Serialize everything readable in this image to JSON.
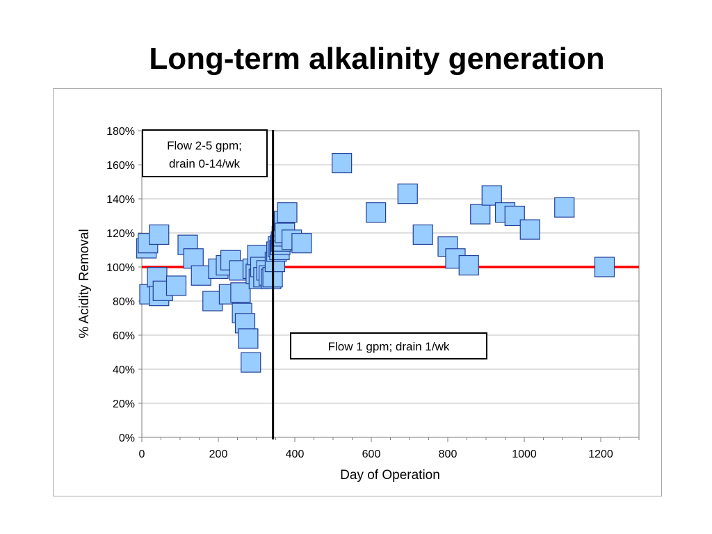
{
  "title": "Long-term alkalinity generation",
  "chart_data": {
    "type": "scatter",
    "title": "",
    "xlabel": "Day of Operation",
    "ylabel": "% Acidity Removal",
    "xlim": [
      0,
      1300
    ],
    "ylim": [
      0,
      180
    ],
    "xticks": [
      0,
      200,
      400,
      600,
      800,
      1000,
      1200
    ],
    "yticks": [
      0,
      20,
      40,
      60,
      80,
      100,
      120,
      140,
      160,
      180
    ],
    "xtick_labels": [
      "0",
      "200",
      "400",
      "600",
      "800",
      "1000",
      "1200"
    ],
    "ytick_labels": [
      "0%",
      "20%",
      "40%",
      "60%",
      "80%",
      "100%",
      "120%",
      "140%",
      "160%",
      "180%"
    ],
    "grid": true,
    "reference_line": {
      "y": 100,
      "color": "#ff0000"
    },
    "divider_line": {
      "x": 343,
      "color": "#000000"
    },
    "marker": {
      "shape": "square",
      "fill": "#99ccff",
      "stroke": "#1f3f99"
    },
    "annotations": [
      {
        "id": "phase1",
        "text": [
          "Flow 2-5 gpm;",
          "drain 0-14/wk"
        ]
      },
      {
        "id": "phase2",
        "text": [
          "Flow 1 gpm; drain 1/wk"
        ]
      }
    ],
    "series": [
      {
        "points": [
          [
            12,
            111
          ],
          [
            16,
            114
          ],
          [
            20,
            84
          ],
          [
            40,
            94
          ],
          [
            45,
            83
          ],
          [
            45,
            119
          ],
          [
            55,
            86
          ],
          [
            90,
            89
          ],
          [
            120,
            113
          ],
          [
            135,
            105
          ],
          [
            155,
            95
          ],
          [
            185,
            80
          ],
          [
            200,
            99
          ],
          [
            220,
            101
          ],
          [
            228,
            84
          ],
          [
            232,
            104
          ],
          [
            255,
            98
          ],
          [
            258,
            85
          ],
          [
            262,
            73
          ],
          [
            270,
            67
          ],
          [
            278,
            58
          ],
          [
            285,
            44
          ],
          [
            290,
            99
          ],
          [
            298,
            96
          ],
          [
            302,
            107
          ],
          [
            306,
            93
          ],
          [
            310,
            100
          ],
          [
            318,
            94
          ],
          [
            326,
            98
          ],
          [
            332,
            95
          ],
          [
            338,
            93
          ],
          [
            342,
            94
          ],
          [
            348,
            103
          ],
          [
            352,
            109
          ],
          [
            356,
            112
          ],
          [
            360,
            110
          ],
          [
            362,
            113
          ],
          [
            364,
            115
          ],
          [
            366,
            118
          ],
          [
            368,
            121
          ],
          [
            370,
            124
          ],
          [
            372,
            127
          ],
          [
            374,
            120
          ],
          [
            380,
            132
          ],
          [
            392,
            116
          ],
          [
            418,
            114
          ],
          [
            523,
            161
          ],
          [
            612,
            132
          ],
          [
            695,
            143
          ],
          [
            735,
            119
          ],
          [
            800,
            112
          ],
          [
            820,
            105
          ],
          [
            855,
            101
          ],
          [
            885,
            131
          ],
          [
            915,
            142
          ],
          [
            950,
            132
          ],
          [
            975,
            130
          ],
          [
            1015,
            122
          ],
          [
            1105,
            135
          ],
          [
            1210,
            100
          ]
        ]
      }
    ]
  }
}
